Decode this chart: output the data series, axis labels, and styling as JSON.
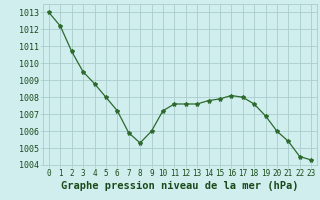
{
  "x": [
    0,
    1,
    2,
    3,
    4,
    5,
    6,
    7,
    8,
    9,
    10,
    11,
    12,
    13,
    14,
    15,
    16,
    17,
    18,
    19,
    20,
    21,
    22,
    23
  ],
  "y": [
    1013.0,
    1012.2,
    1010.7,
    1009.5,
    1008.8,
    1008.0,
    1007.2,
    1005.9,
    1005.3,
    1006.0,
    1007.2,
    1007.6,
    1007.6,
    1007.6,
    1007.8,
    1007.9,
    1008.1,
    1008.0,
    1007.6,
    1006.9,
    1006.0,
    1005.4,
    1004.5,
    1004.3
  ],
  "line_color": "#2d6a2d",
  "marker": "*",
  "marker_size": 3,
  "bg_color": "#d0eeee",
  "grid_color": "#aacccc",
  "xlabel": "Graphe pression niveau de la mer (hPa)",
  "xlabel_color": "#1a4a1a",
  "xlabel_fontsize": 7.5,
  "ylabel_fontsize": 6,
  "tick_fontsize": 5.5,
  "ylim": [
    1004,
    1013.5
  ],
  "xlim": [
    -0.5,
    23.5
  ],
  "yticks": [
    1004,
    1005,
    1006,
    1007,
    1008,
    1009,
    1010,
    1011,
    1012,
    1013
  ],
  "xticks": [
    0,
    1,
    2,
    3,
    4,
    5,
    6,
    7,
    8,
    9,
    10,
    11,
    12,
    13,
    14,
    15,
    16,
    17,
    18,
    19,
    20,
    21,
    22,
    23
  ]
}
